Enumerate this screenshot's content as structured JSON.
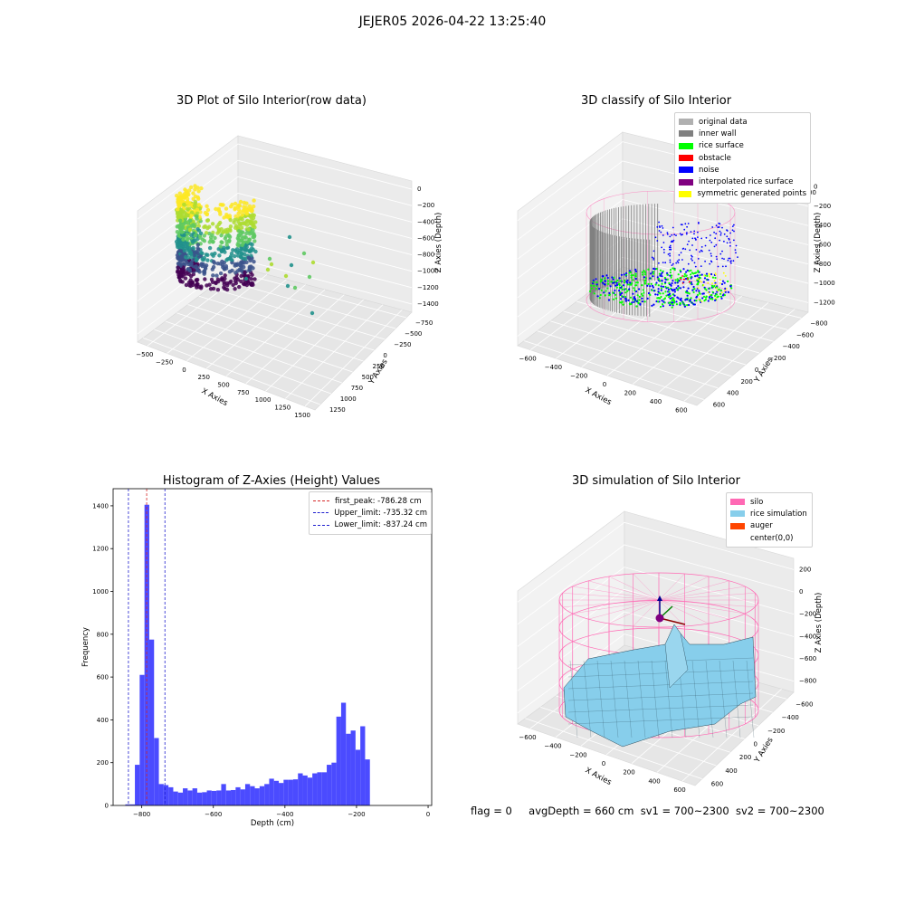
{
  "suptitle": "JEJER05 2026-04-22 13:25:40",
  "status": {
    "flag": "flag = 0",
    "avg_depth": "avgDepth = 660 cm",
    "sv1": "sv1 = 700~2300",
    "sv2": "sv2 = 700~2300"
  },
  "colors": {
    "hist_bar": "#4b4bff",
    "first_peak": "#d62728",
    "limit": "#1f1fcf",
    "silo": "#ff69b4",
    "rice_simulation": "#87ceeb",
    "auger": "#ff4500",
    "original_data": "#b0b0b0",
    "inner_wall": "#808080",
    "rice_surface": "#00ff00",
    "obstacle": "#ff0000",
    "noise": "#0000ff",
    "interpolated_rice_surface": "#800080",
    "symmetric_generated_points": "#ffff00"
  },
  "chart_data": [
    {
      "type": "scatter",
      "projection": "3d",
      "title": "3D Plot of Silo Interior(row data)",
      "xlabel": "X Axies",
      "ylabel": "Y Axies",
      "zlabel": "Z Axies (Depth)",
      "x_ticks": [
        "−500",
        "−250",
        "0",
        "250",
        "500",
        "750",
        "1000",
        "1250",
        "1500"
      ],
      "y_ticks": [
        "−750",
        "−500",
        "−250",
        "0",
        "250",
        "500",
        "750",
        "1000",
        "1250"
      ],
      "z_ticks": [
        "0",
        "−200",
        "−400",
        "−600",
        "−800",
        "−1000",
        "−1200",
        "−1400"
      ],
      "colormap": "viridis",
      "grid": true
    },
    {
      "type": "scatter",
      "projection": "3d",
      "title": "3D classify of Silo Interior",
      "xlabel": "X Axies",
      "ylabel": "Y Axies",
      "zlabel": "Z Axies (Depth)",
      "x_ticks": [
        "−600",
        "−400",
        "−200",
        "0",
        "200",
        "400",
        "600"
      ],
      "y_ticks": [
        "−800",
        "−600",
        "−400",
        "−200",
        "0",
        "200",
        "400",
        "600"
      ],
      "z_ticks": [
        "0",
        "−200",
        "−400",
        "−600",
        "−800",
        "−1000",
        "−1200"
      ],
      "z_partial_tick": "00",
      "legend_position": "top-right",
      "legend": [
        "original data",
        "inner wall",
        "rice surface",
        "obstacle",
        "noise",
        "interpolated rice surface",
        "symmetric generated points"
      ],
      "grid": true
    },
    {
      "type": "bar",
      "subtype": "histogram",
      "title": "Histogram of Z-Axies (Height) Values",
      "xlabel": "Depth (cm)",
      "ylabel": "Frequency",
      "xlim": [
        -880,
        10
      ],
      "ylim": [
        0,
        1480
      ],
      "x_ticks": [
        -800,
        -600,
        -400,
        -200,
        0
      ],
      "y_ticks": [
        0,
        200,
        400,
        600,
        800,
        1000,
        1200,
        1400
      ],
      "bin_width": 13.4,
      "bin_edges_start": -846,
      "values": [
        5,
        5,
        190,
        610,
        1405,
        775,
        315,
        100,
        95,
        85,
        65,
        60,
        80,
        70,
        80,
        60,
        62,
        70,
        68,
        70,
        100,
        70,
        72,
        85,
        75,
        100,
        90,
        80,
        90,
        100,
        125,
        115,
        105,
        120,
        120,
        122,
        150,
        140,
        130,
        150,
        155,
        155,
        190,
        200,
        415,
        480,
        335,
        350,
        260,
        370,
        215
      ],
      "vlines": [
        {
          "name": "first_peak",
          "x": -786.28,
          "label": "first_peak: -786.28 cm"
        },
        {
          "name": "upper_limit",
          "x": -735.32,
          "label": "Upper_limit: -735.32 cm"
        },
        {
          "name": "lower_limit",
          "x": -837.24,
          "label": "Lower_limit: -837.24 cm"
        }
      ],
      "legend_position": "top-right",
      "grid": false
    },
    {
      "type": "surface",
      "projection": "3d",
      "title": "3D simulation of Silo Interior",
      "xlabel": "X Axies",
      "ylabel": "Y Axies",
      "zlabel": "Z Axies (Depth)",
      "x_ticks": [
        "−600",
        "−400",
        "−200",
        "0",
        "200",
        "400",
        "600"
      ],
      "y_ticks": [
        "−600",
        "−400",
        "−200",
        "0",
        "200",
        "400",
        "600"
      ],
      "z_ticks": [
        "200",
        "0",
        "−200",
        "−400",
        "−600",
        "−800"
      ],
      "legend_position": "top-right",
      "legend": [
        "silo",
        "rice simulation",
        "auger",
        "center(0,0)"
      ],
      "grid": true
    }
  ]
}
